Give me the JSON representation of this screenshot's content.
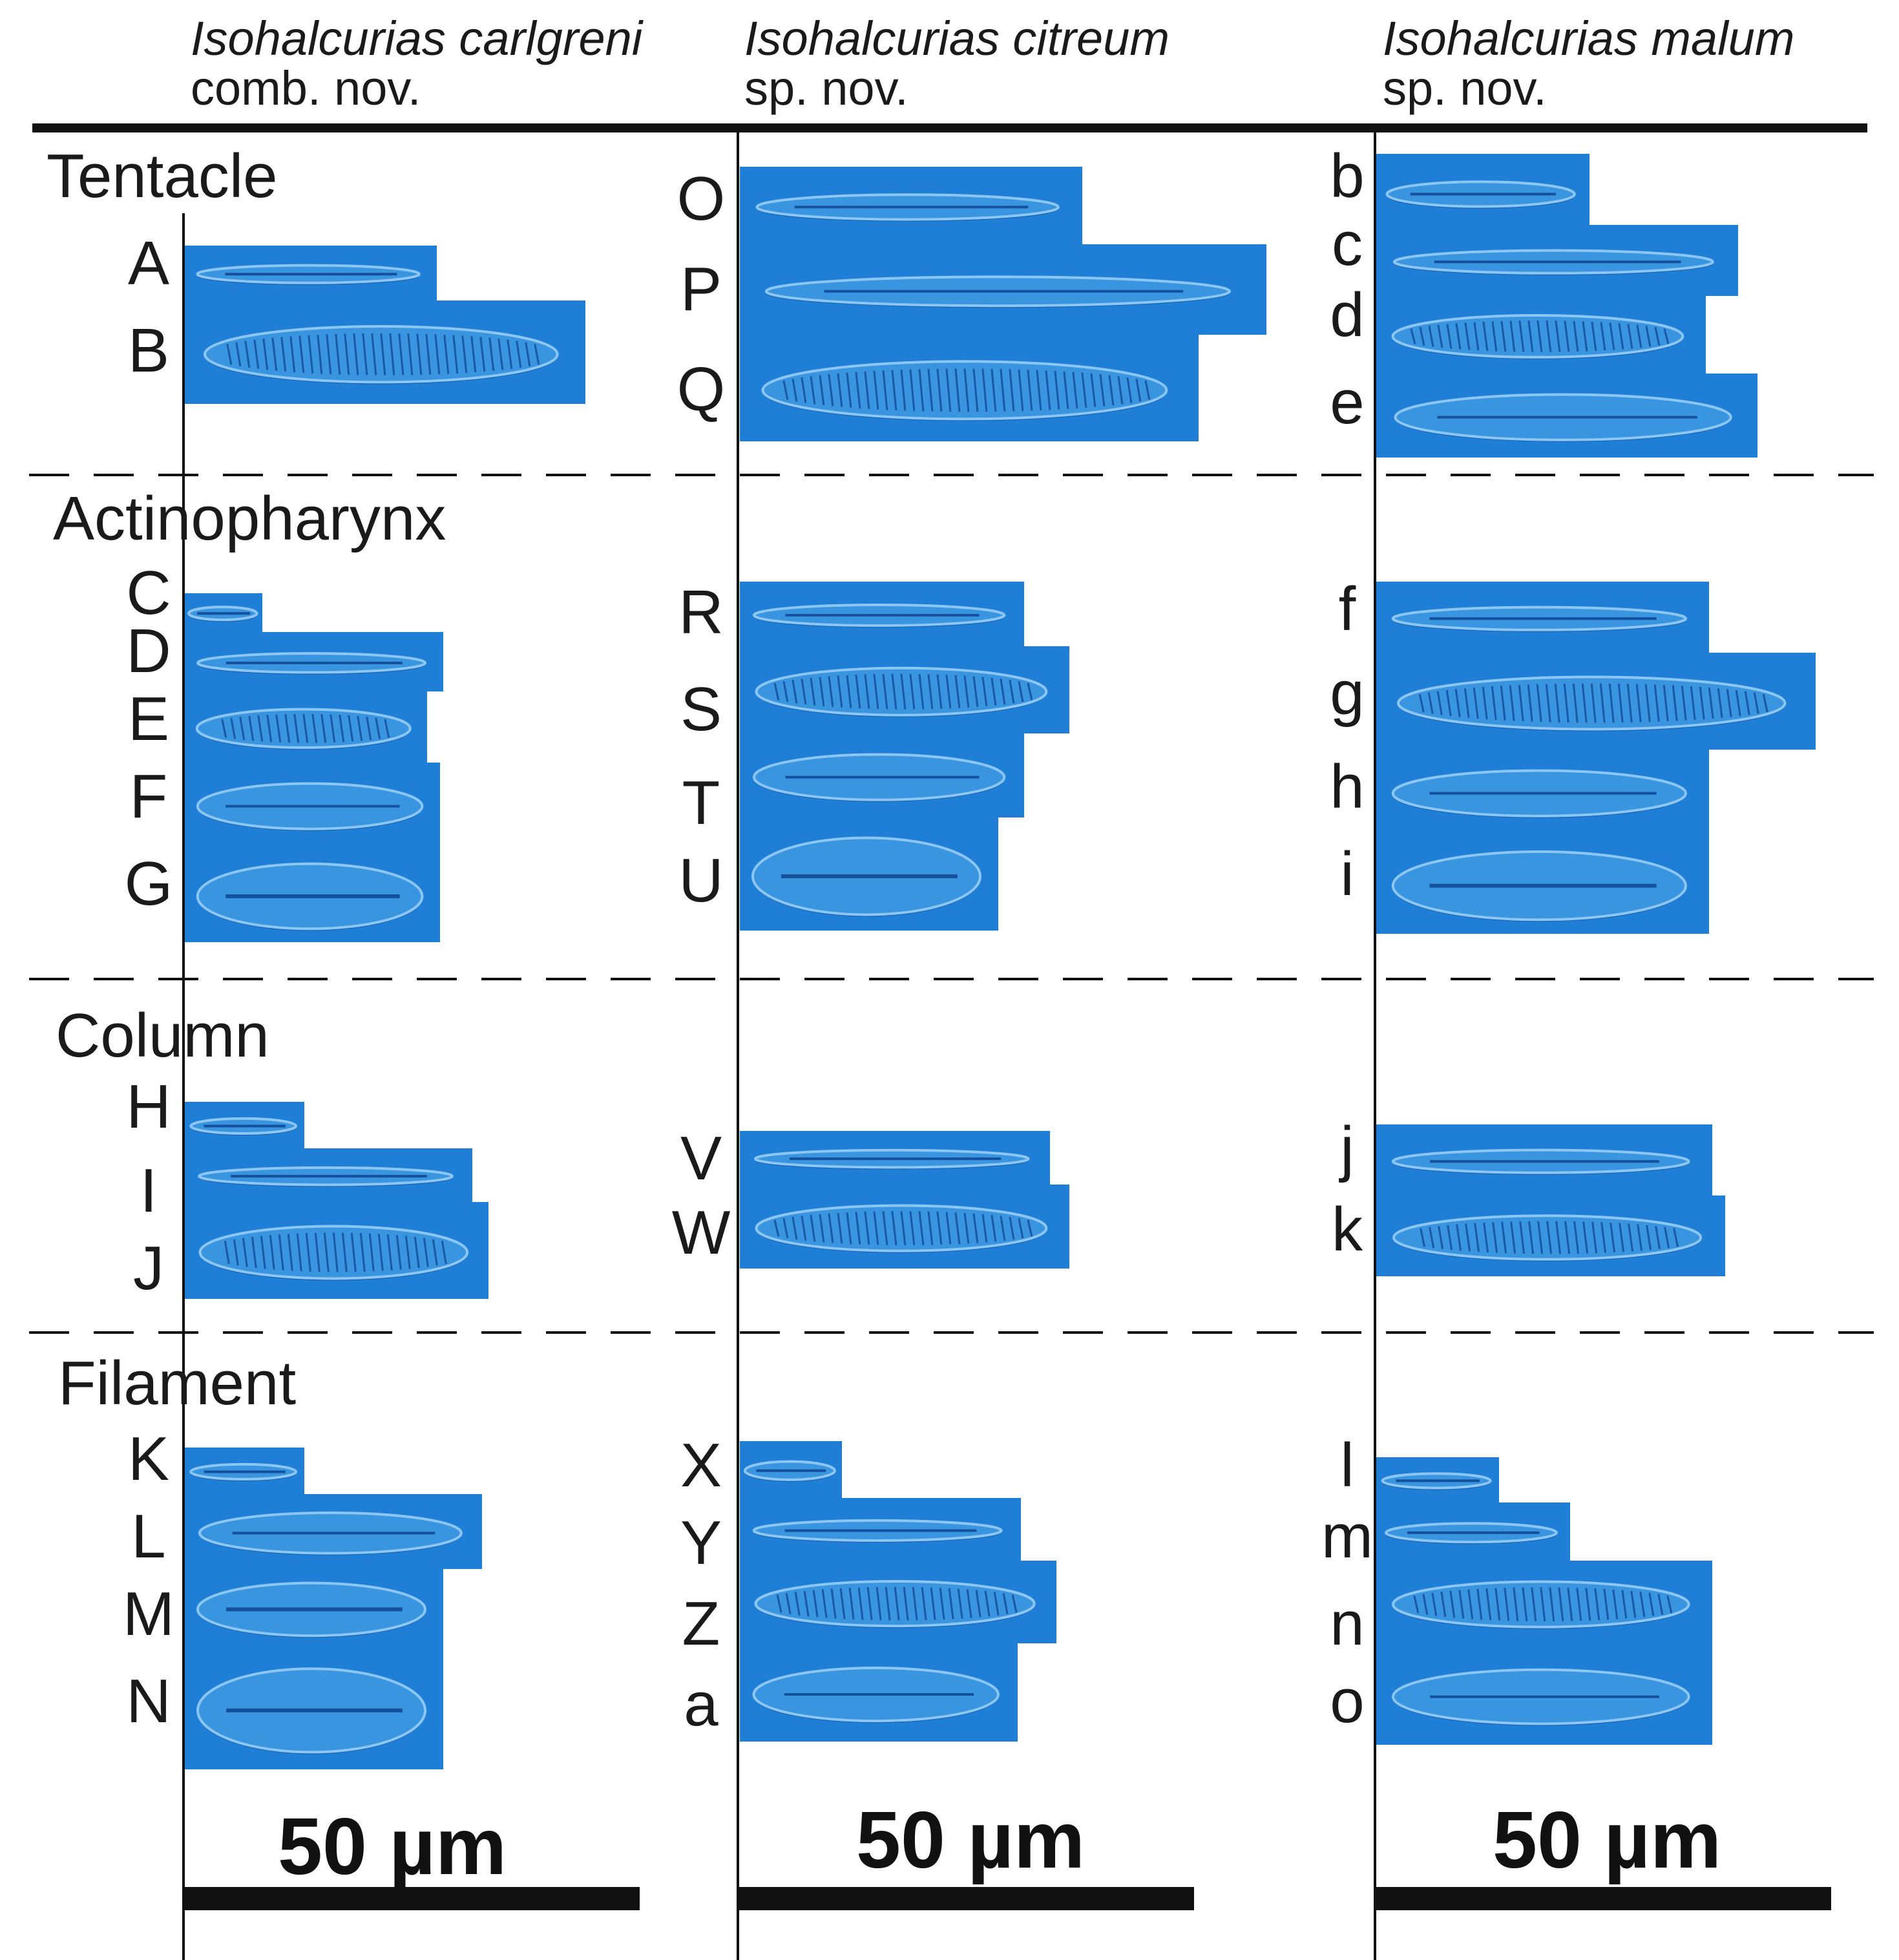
{
  "columns": [
    {
      "species": "Isohalcurias carlgreni",
      "status": "comb. nov."
    },
    {
      "species": "Isohalcurias citreum",
      "status": "sp. nov."
    },
    {
      "species": "Isohalcurias malum",
      "status": "sp. nov."
    }
  ],
  "sections": [
    {
      "label": "Tentacle"
    },
    {
      "label": "Actinopharynx"
    },
    {
      "label": "Column"
    },
    {
      "label": "Filament"
    }
  ],
  "panel_labels": {
    "col1": [
      "A",
      "B",
      "C",
      "D",
      "E",
      "F",
      "G",
      "H",
      "I",
      "J",
      "K",
      "L",
      "M",
      "N"
    ],
    "col2": [
      "O",
      "P",
      "Q",
      "R",
      "S",
      "T",
      "U",
      "V",
      "W",
      "X",
      "Y",
      "Z",
      "a"
    ],
    "col3": [
      "b",
      "c",
      "d",
      "e",
      "f",
      "g",
      "h",
      "i",
      "j",
      "k",
      "l",
      "m",
      "n",
      "o"
    ]
  },
  "scale_bars": [
    "50 µm",
    "50 µm",
    "50 µm"
  ],
  "colors": {
    "panel_fill": "#1f7fd6",
    "panel_fill_light": "#3a95e0",
    "capsule_dark": "#0b3f8c",
    "capsule_light": "#8cc6f2",
    "rule": "#111111"
  }
}
